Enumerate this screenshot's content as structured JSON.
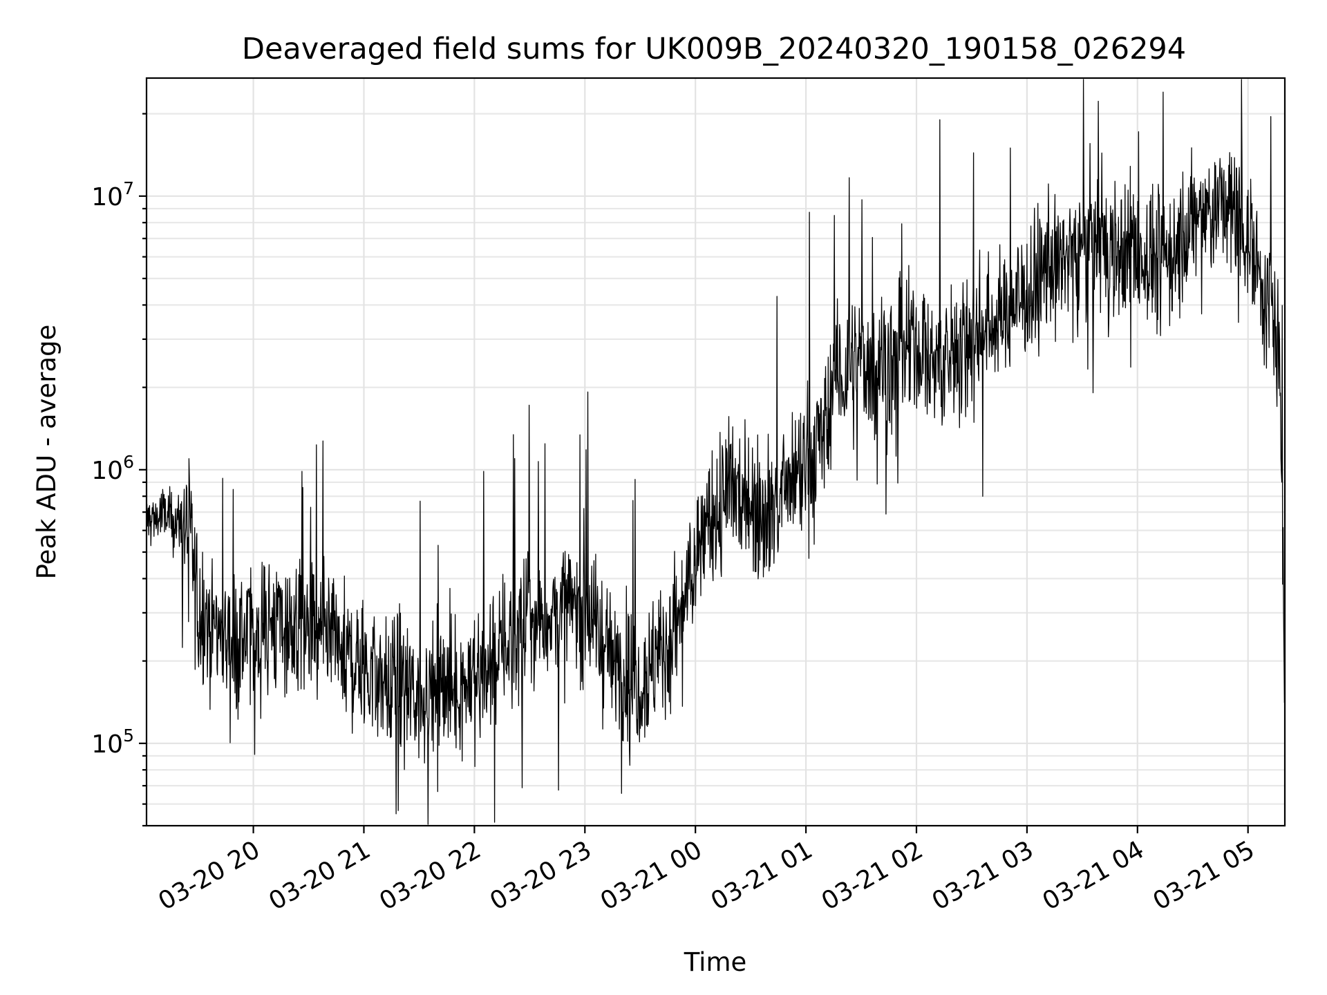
{
  "chart_data": {
    "type": "line",
    "title": "Deaveraged field sums for UK009B_20240320_190158_026294",
    "xlabel": "Time",
    "ylabel": "Peak ADU - average",
    "yscale": "log",
    "ylim": [
      50000,
      27000000
    ],
    "xlim": [
      "2024-03-20 19:02",
      "2024-03-21 05:20"
    ],
    "grid": true,
    "y_ticks": [
      {
        "base": "10",
        "exp": "5",
        "value": 100000
      },
      {
        "base": "10",
        "exp": "6",
        "value": 1000000
      },
      {
        "base": "10",
        "exp": "7",
        "value": 10000000
      }
    ],
    "x_ticks": [
      {
        "label": "03-20 20",
        "value": "2024-03-20 20:00"
      },
      {
        "label": "03-20 21",
        "value": "2024-03-20 21:00"
      },
      {
        "label": "03-20 22",
        "value": "2024-03-20 22:00"
      },
      {
        "label": "03-20 23",
        "value": "2024-03-20 23:00"
      },
      {
        "label": "03-21 00",
        "value": "2024-03-21 00:00"
      },
      {
        "label": "03-21 01",
        "value": "2024-03-21 01:00"
      },
      {
        "label": "03-21 02",
        "value": "2024-03-21 02:00"
      },
      {
        "label": "03-21 03",
        "value": "2024-03-21 03:00"
      },
      {
        "label": "03-21 04",
        "value": "2024-03-21 04:00"
      },
      {
        "label": "03-21 05",
        "value": "2024-03-21 05:00"
      }
    ],
    "series": [
      {
        "color": "#000000",
        "x": [
          "2024-03-20 19:02",
          "2024-03-20 19:10",
          "2024-03-20 19:20",
          "2024-03-20 19:25",
          "2024-03-20 19:30",
          "2024-03-20 19:40",
          "2024-03-20 19:50",
          "2024-03-20 20:00",
          "2024-03-20 20:10",
          "2024-03-20 20:20",
          "2024-03-20 20:30",
          "2024-03-20 20:45",
          "2024-03-20 21:00",
          "2024-03-20 21:15",
          "2024-03-20 21:30",
          "2024-03-20 21:45",
          "2024-03-20 22:00",
          "2024-03-20 22:15",
          "2024-03-20 22:30",
          "2024-03-20 22:45",
          "2024-03-20 23:00",
          "2024-03-20 23:15",
          "2024-03-20 23:30",
          "2024-03-20 23:45",
          "2024-03-20 23:55",
          "2024-03-21 00:05",
          "2024-03-21 00:20",
          "2024-03-21 00:40",
          "2024-03-21 00:50",
          "2024-03-21 01:00",
          "2024-03-21 01:10",
          "2024-03-21 01:15",
          "2024-03-21 01:30",
          "2024-03-21 01:45",
          "2024-03-21 02:00",
          "2024-03-21 02:15",
          "2024-03-21 02:30",
          "2024-03-21 02:45",
          "2024-03-21 03:00",
          "2024-03-21 03:15",
          "2024-03-21 03:30",
          "2024-03-21 03:45",
          "2024-03-21 04:00",
          "2024-03-21 04:15",
          "2024-03-21 04:30",
          "2024-03-21 04:45",
          "2024-03-21 05:00",
          "2024-03-21 05:10",
          "2024-03-21 05:17",
          "2024-03-21 05:20"
        ],
        "y": [
          650000,
          680000,
          640000,
          600000,
          320000,
          270000,
          230000,
          250000,
          280000,
          260000,
          250000,
          220000,
          190000,
          160000,
          150000,
          160000,
          170000,
          220000,
          280000,
          300000,
          320000,
          200000,
          170000,
          230000,
          330000,
          600000,
          850000,
          720000,
          800000,
          1000000,
          1300000,
          2100000,
          2400000,
          2500000,
          2800000,
          2400000,
          3000000,
          3600000,
          4500000,
          5500000,
          6800000,
          6400000,
          6000000,
          5800000,
          7800000,
          9500000,
          7500000,
          4500000,
          2500000,
          250000
        ]
      }
    ]
  }
}
